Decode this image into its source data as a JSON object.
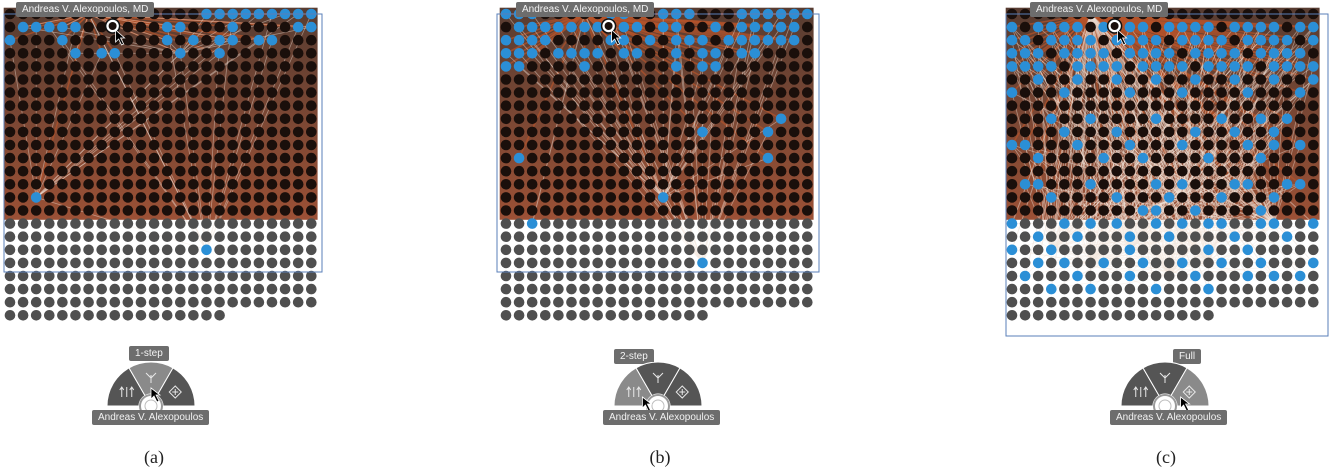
{
  "panels": [
    {
      "id": "a",
      "caption": "(a)",
      "person": "Andreas V. Alexopoulos, MD",
      "mode_label": "1-step",
      "center_label": "Andreas V. Alexopoulos",
      "active_option": 1
    },
    {
      "id": "b",
      "caption": "(b)",
      "person": "Andreas V. Alexopoulos, MD",
      "mode_label": "2-step",
      "center_label": "Andreas V. Alexopoulos",
      "active_option": 0
    },
    {
      "id": "c",
      "caption": "(c)",
      "person": "Andreas V. Alexopoulos, MD",
      "mode_label": "Full",
      "center_label": "Andreas V. Alexopoulos",
      "active_option": 2
    }
  ],
  "menu_options": [
    {
      "name": "two-step-icon"
    },
    {
      "name": "one-step-icon"
    },
    {
      "name": "full-expand-icon"
    }
  ],
  "colors": {
    "highlight": "#2b8fd6",
    "node_dark": "#1a0f0b",
    "node_gray": "#4f4f4f",
    "edge": "#b5532a",
    "menu": "#6b6b6b",
    "menu_dark": "#555555",
    "frame": "#5a7fb8"
  }
}
